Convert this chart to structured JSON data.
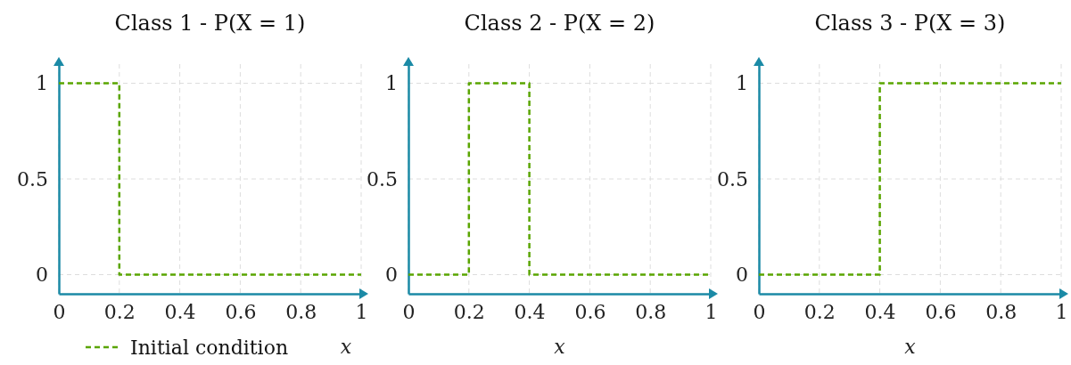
{
  "chart_data": [
    {
      "type": "line",
      "title": "Class 1 - P(X = 1)",
      "xlabel": "x",
      "xlim": [
        0,
        1
      ],
      "xticks": [
        0,
        0.2,
        0.4,
        0.6,
        0.8,
        1
      ],
      "ylim": [
        -0.1,
        1.1
      ],
      "yticks": [
        0,
        0.5,
        1
      ],
      "grid": true,
      "legend": "bottom",
      "marker": "none",
      "line_style": "dashed",
      "series": [
        {
          "name": "Initial condition",
          "color": "#5aa500",
          "x": [
            0,
            0.2,
            0.2,
            1
          ],
          "values": [
            1,
            1,
            0,
            0
          ]
        }
      ]
    },
    {
      "type": "line",
      "title": "Class 2 - P(X = 2)",
      "xlabel": "x",
      "xlim": [
        0,
        1
      ],
      "xticks": [
        0,
        0.2,
        0.4,
        0.6,
        0.8,
        1
      ],
      "ylim": [
        -0.1,
        1.1
      ],
      "yticks": [
        0,
        0.5,
        1
      ],
      "grid": true,
      "marker": "none",
      "line_style": "dashed",
      "series": [
        {
          "color": "#5aa500",
          "x": [
            0,
            0.2,
            0.2,
            0.4,
            0.4,
            1
          ],
          "values": [
            0,
            0,
            1,
            1,
            0,
            0
          ]
        }
      ]
    },
    {
      "type": "line",
      "title": "Class 3 - P(X = 3)",
      "xlabel": "x",
      "xlim": [
        0,
        1
      ],
      "xticks": [
        0,
        0.2,
        0.4,
        0.6,
        0.8,
        1
      ],
      "ylim": [
        -0.1,
        1.1
      ],
      "yticks": [
        0,
        0.5,
        1
      ],
      "grid": true,
      "marker": "none",
      "line_style": "dashed",
      "series": [
        {
          "color": "#5aa500",
          "x": [
            0,
            0.4,
            0.4,
            1
          ],
          "values": [
            0,
            0,
            1,
            1
          ]
        }
      ]
    }
  ]
}
